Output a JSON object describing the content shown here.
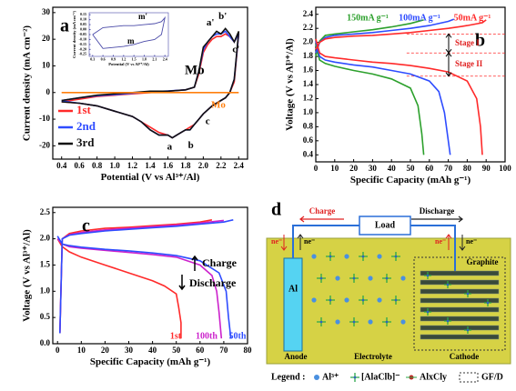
{
  "chart_data": [
    {
      "type": "line",
      "label": "a",
      "xlabel": "Potential (V vs Al³⁺/Al)",
      "ylabel": "Current density (mA cm⁻²)",
      "xlim": [
        0.3,
        2.5
      ],
      "xticks": [
        0.4,
        0.6,
        0.8,
        {
          "value": 1.0,
          "label": "1.0"
        },
        1.2,
        1.4,
        1.6,
        1.8,
        {
          "value": 2.0,
          "label": "2.0"
        },
        2.2,
        2.4
      ],
      "ylim": [
        -25,
        32
      ],
      "yticks": [
        -20,
        -10,
        0,
        10,
        20,
        30
      ],
      "series": [
        {
          "name": "1st",
          "color": "#ff2a2a",
          "x": [
            0.4,
            0.6,
            0.8,
            1.0,
            1.2,
            1.4,
            1.6,
            1.8,
            1.9,
            1.95,
            2.0,
            2.05,
            2.1,
            2.15,
            2.2,
            2.25,
            2.3,
            2.35,
            2.4,
            2.35,
            2.3,
            2.25,
            2.2,
            2.1,
            2.0,
            1.95,
            1.9,
            1.85,
            1.8,
            1.75,
            1.7,
            1.65,
            1.6,
            1.5,
            1.4,
            1.3,
            1.2,
            1.0,
            0.8,
            0.6,
            0.4
          ],
          "values": [
            -3.5,
            -2.5,
            -1.5,
            -1,
            -0.5,
            0,
            0.5,
            1,
            2,
            7,
            15,
            18,
            20,
            21,
            21,
            22,
            21,
            19,
            22,
            4,
            0,
            -2,
            -3,
            -5,
            -8,
            -10,
            -12,
            -13,
            -14,
            -15,
            -16,
            -17,
            -16,
            -15,
            -13,
            -11,
            -9,
            -7,
            -5,
            -4,
            -3.5
          ]
        },
        {
          "name": "2nd",
          "color": "#2e4cff",
          "x": [
            0.4,
            0.6,
            0.8,
            1.0,
            1.2,
            1.4,
            1.6,
            1.8,
            1.9,
            1.95,
            2.0,
            2.05,
            2.1,
            2.15,
            2.2,
            2.25,
            2.3,
            2.35,
            2.4,
            2.35,
            2.3,
            2.25,
            2.2,
            2.1,
            2.0,
            1.95,
            1.9,
            1.85,
            1.8,
            1.75,
            1.7,
            1.65,
            1.6,
            1.5,
            1.4,
            1.3,
            1.2,
            1.0,
            0.8,
            0.6,
            0.4
          ],
          "values": [
            -3,
            -2,
            -1.2,
            -0.8,
            -0.3,
            0.3,
            0.6,
            1,
            2,
            8,
            16,
            19,
            21,
            22,
            22,
            23,
            21,
            19,
            22,
            5,
            0,
            -2,
            -3,
            -5,
            -8,
            -10,
            -12,
            -14,
            -14,
            -15,
            -16,
            -17,
            -16,
            -16,
            -14,
            -11,
            -9,
            -7,
            -5,
            -4,
            -3.2
          ]
        },
        {
          "name": "3rd",
          "color": "#111111",
          "x": [
            0.4,
            0.6,
            0.8,
            1.0,
            1.2,
            1.4,
            1.6,
            1.8,
            1.9,
            1.95,
            2.0,
            2.05,
            2.1,
            2.15,
            2.2,
            2.25,
            2.3,
            2.35,
            2.4,
            2.35,
            2.3,
            2.25,
            2.2,
            2.1,
            2.0,
            1.95,
            1.9,
            1.85,
            1.8,
            1.75,
            1.7,
            1.65,
            1.6,
            1.5,
            1.4,
            1.3,
            1.2,
            1.0,
            0.8,
            0.6,
            0.4
          ],
          "values": [
            -3,
            -2,
            -1,
            -0.5,
            0,
            0.5,
            0.5,
            1,
            2,
            8,
            17,
            19,
            21,
            23,
            22,
            24,
            22,
            19,
            23,
            5,
            0,
            -2,
            -3,
            -5,
            -8,
            -10,
            -12,
            -14,
            -14,
            -15,
            -16,
            -17,
            -16,
            -16,
            -14,
            -11,
            -9,
            -7,
            -5,
            -4,
            -3.5
          ]
        },
        {
          "name": "Mo",
          "color": "#ff7f0e",
          "x": [
            0.4,
            0.8,
            1.2,
            1.6,
            2.0,
            2.4
          ],
          "values": [
            0,
            0,
            0,
            0,
            0,
            0
          ]
        }
      ],
      "annotations": [
        "a",
        "b",
        "c",
        "a'",
        "b'",
        "c'"
      ],
      "inset": {
        "type": "line",
        "xlabel": "Potential (V vs Al³⁺/Al)",
        "ylabel": "Current density (mA cm⁻²)",
        "xlim": [
          0.2,
          2.5
        ],
        "xticks": [
          0.3,
          0.6,
          0.9,
          1.2,
          1.5,
          1.8,
          2.1,
          2.4
        ],
        "ylim": [
          -0.27,
          0.17
        ],
        "yticks": [
          0.15,
          {
            "value": 0.1,
            "label": "0.10"
          },
          0.05,
          {
            "value": 0,
            "label": "0.00"
          },
          -0.05,
          {
            "value": -0.1,
            "label": "-0.10"
          },
          -0.15,
          {
            "value": -0.2,
            "label": "-0.20"
          },
          -0.25
        ],
        "series": [
          {
            "color": "#4a4aa8",
            "x": [
              0.3,
              0.6,
              0.9,
              1.2,
              1.5,
              1.8,
              2.1,
              2.3,
              2.4,
              2.3,
              2.1,
              1.8,
              1.5,
              1.2,
              0.9,
              0.6,
              0.3
            ],
            "values": [
              -0.05,
              0.02,
              0.03,
              0.04,
              0.04,
              0.05,
              0.06,
              0.08,
              0.12,
              -0.05,
              -0.1,
              -0.12,
              -0.15,
              -0.17,
              -0.18,
              -0.19,
              -0.05
            ]
          }
        ],
        "annotations": [
          "m'",
          "m",
          "Mo"
        ]
      }
    },
    {
      "type": "line",
      "label": "b",
      "xlabel": "Specific Capacity (mAh g⁻¹)",
      "ylabel": "Voltage (V vs Al³⁺/Al)",
      "xlim": [
        0,
        100
      ],
      "xticks": [
        0,
        10,
        20,
        30,
        40,
        50,
        60,
        70,
        80,
        90,
        100
      ],
      "ylim": [
        0.3,
        2.5
      ],
      "yticks": [
        0.4,
        0.6,
        0.8,
        {
          "value": 1.0,
          "label": "1.0"
        },
        1.2,
        1.4,
        1.6,
        1.8,
        {
          "value": 2.0,
          "label": "2.0"
        },
        2.2,
        2.4
      ],
      "reference_lines": [
        2.12,
        1.85,
        1.52
      ],
      "series": [
        {
          "name": "150mA g⁻¹",
          "color": "#2ca02c",
          "charge": {
            "x": [
              0,
              2,
              5,
              10,
              20,
              30,
              40,
              50,
              57
            ],
            "values": [
              1.8,
              2.02,
              2.1,
              2.12,
              2.15,
              2.18,
              2.22,
              2.27,
              2.32
            ]
          },
          "discharge": {
            "x": [
              0,
              2,
              5,
              10,
              20,
              30,
              40,
              50,
              54,
              56,
              57
            ],
            "values": [
              1.98,
              1.75,
              1.7,
              1.66,
              1.6,
              1.55,
              1.48,
              1.35,
              1.1,
              0.7,
              0.4
            ]
          }
        },
        {
          "name": "100mA g⁻¹",
          "color": "#2e4cff",
          "charge": {
            "x": [
              0,
              2,
              5,
              10,
              20,
              30,
              40,
              50,
              60,
              70,
              73
            ],
            "values": [
              1.85,
              2.0,
              2.07,
              2.1,
              2.12,
              2.14,
              2.17,
              2.2,
              2.24,
              2.3,
              2.33
            ]
          },
          "discharge": {
            "x": [
              0,
              2,
              5,
              10,
              20,
              30,
              40,
              50,
              60,
              65,
              68,
              70,
              71
            ],
            "values": [
              2.02,
              1.8,
              1.75,
              1.72,
              1.68,
              1.65,
              1.6,
              1.55,
              1.45,
              1.3,
              1.0,
              0.6,
              0.4
            ]
          }
        },
        {
          "name": "50mA g⁻¹",
          "color": "#ff2a2a",
          "charge": {
            "x": [
              0,
              2,
              5,
              10,
              20,
              30,
              40,
              50,
              60,
              70,
              80,
              88,
              90
            ],
            "values": [
              1.9,
              2.0,
              2.05,
              2.07,
              2.09,
              2.1,
              2.12,
              2.14,
              2.17,
              2.2,
              2.24,
              2.28,
              2.32
            ]
          },
          "discharge": {
            "x": [
              0,
              2,
              5,
              10,
              20,
              30,
              40,
              50,
              60,
              70,
              80,
              85,
              87,
              88
            ],
            "values": [
              2.05,
              1.85,
              1.8,
              1.78,
              1.75,
              1.72,
              1.7,
              1.67,
              1.63,
              1.58,
              1.45,
              1.2,
              0.8,
              0.4
            ]
          }
        }
      ],
      "annotations": [
        "Stage I",
        "Stage II"
      ]
    },
    {
      "type": "line",
      "label": "c",
      "xlabel": "Specific Capacity (mAh g⁻¹)",
      "ylabel": "Voltage (V vs Al³⁺/Al)",
      "xlim": [
        -2,
        80
      ],
      "xticks": [
        0,
        10,
        20,
        30,
        40,
        50,
        60,
        70,
        80
      ],
      "ylim": [
        0,
        2.6
      ],
      "yticks": [
        {
          "value": 0,
          "label": "0.0"
        },
        0.5,
        {
          "value": 1,
          "label": "1.0"
        },
        1.5,
        {
          "value": 2,
          "label": "2.0"
        },
        2.5
      ],
      "series": [
        {
          "name": "1st",
          "color": "#ff2a2a",
          "charge": {
            "x": [
              1,
              2,
              5,
              10,
              20,
              30,
              40,
              50,
              60,
              65
            ],
            "values": [
              0.2,
              2.0,
              2.1,
              2.15,
              2.2,
              2.22,
              2.25,
              2.28,
              2.32,
              2.36
            ]
          },
          "discharge": {
            "x": [
              0,
              2,
              5,
              10,
              20,
              30,
              40,
              45,
              50,
              51,
              52,
              52
            ],
            "values": [
              2.0,
              1.85,
              1.75,
              1.65,
              1.5,
              1.35,
              1.2,
              1.1,
              0.95,
              0.7,
              0.4,
              0.1
            ]
          }
        },
        {
          "name": "100th",
          "color": "#cc22cc",
          "charge": {
            "x": [
              1,
              2,
              5,
              10,
              20,
              30,
              40,
              50,
              60,
              70
            ],
            "values": [
              0.2,
              2.0,
              2.08,
              2.12,
              2.17,
              2.2,
              2.23,
              2.26,
              2.3,
              2.35
            ]
          },
          "discharge": {
            "x": [
              0,
              2,
              5,
              10,
              20,
              30,
              40,
              50,
              60,
              65,
              67,
              68,
              69
            ],
            "values": [
              2.0,
              1.9,
              1.85,
              1.82,
              1.78,
              1.74,
              1.7,
              1.65,
              1.5,
              1.3,
              1.0,
              0.6,
              0.1
            ]
          }
        },
        {
          "name": "50th",
          "color": "#2e4cff",
          "charge": {
            "x": [
              1,
              2,
              5,
              10,
              20,
              30,
              40,
              50,
              60,
              70,
              74
            ],
            "values": [
              0.2,
              2.0,
              2.07,
              2.1,
              2.15,
              2.18,
              2.21,
              2.24,
              2.28,
              2.32,
              2.36
            ]
          },
          "discharge": {
            "x": [
              0,
              2,
              5,
              10,
              20,
              30,
              40,
              50,
              60,
              68,
              71,
              72,
              73
            ],
            "values": [
              2.05,
              1.9,
              1.87,
              1.84,
              1.8,
              1.77,
              1.73,
              1.68,
              1.58,
              1.35,
              1.0,
              0.5,
              0.1
            ]
          }
        }
      ],
      "annotations": [
        "Charge",
        "Discharge"
      ]
    }
  ],
  "diagram": {
    "label": "d",
    "charge": "Charge",
    "discharge": "Discharge",
    "load": "Load",
    "electron_labels": [
      "ne⁻",
      "ne⁻",
      "ne⁻",
      "ne⁻"
    ],
    "anode_metal": "Al",
    "cathode_material": "Graphite",
    "regions": [
      "Anode",
      "Electrolyte",
      "Cathode"
    ],
    "legend": {
      "title": "Legend :",
      "items": [
        "Al³⁺",
        "[AlaClb]⁻",
        "AlxCly",
        "GF/D"
      ]
    }
  }
}
